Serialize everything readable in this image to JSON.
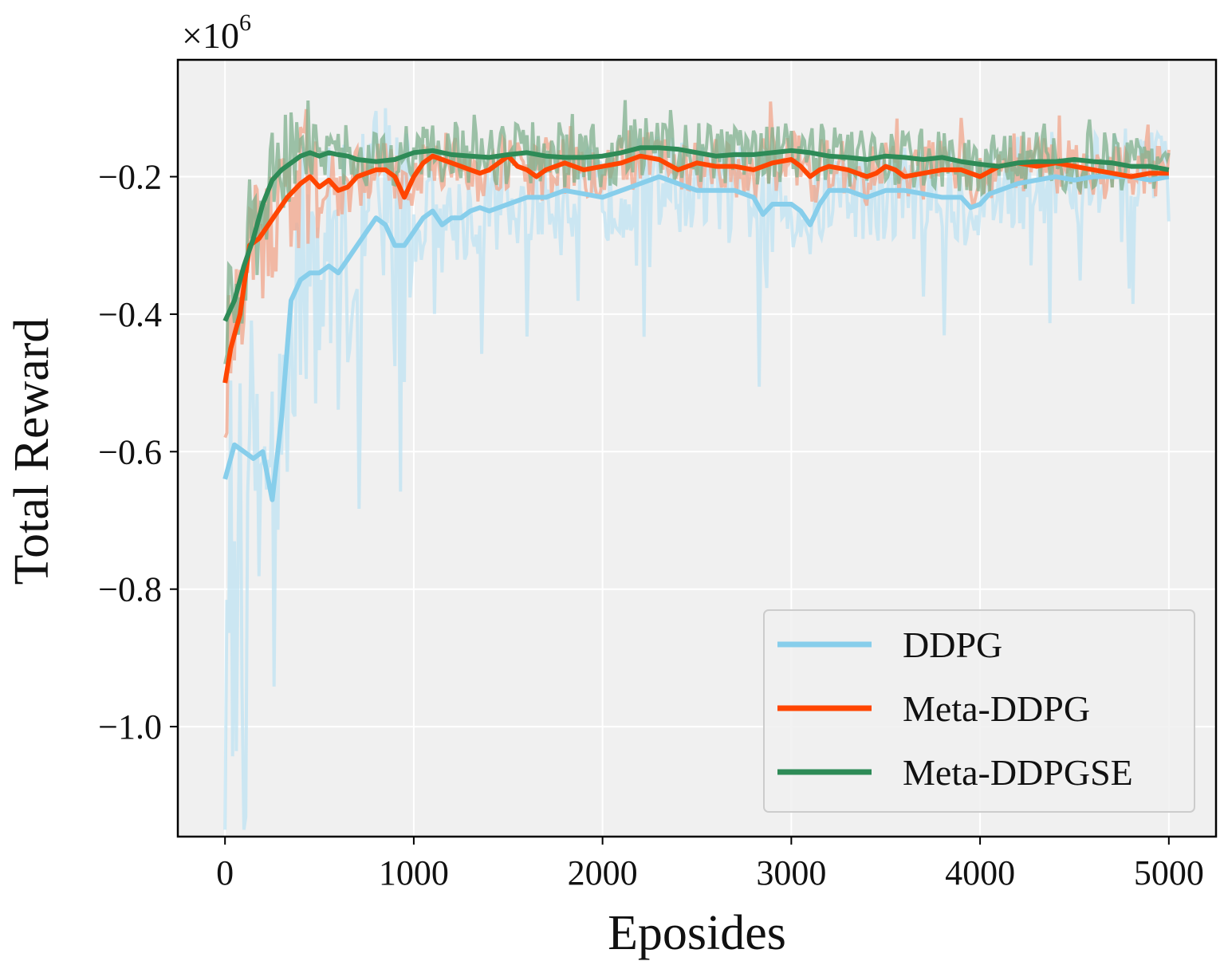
{
  "chart_data": {
    "type": "line",
    "title": "",
    "xlabel": "Eposides",
    "ylabel": "Total Reward",
    "y_offset_label": "×10",
    "y_offset_exponent": "6",
    "xlim": [
      -250,
      5250
    ],
    "ylim": [
      -1.16,
      -0.03
    ],
    "x_ticks": [
      0,
      1000,
      2000,
      3000,
      4000,
      5000
    ],
    "x_tick_labels": [
      "0",
      "1000",
      "2000",
      "3000",
      "4000",
      "5000"
    ],
    "y_ticks": [
      -1.0,
      -0.8,
      -0.6,
      -0.4,
      -0.2
    ],
    "y_tick_labels": [
      "−1.0",
      "−0.8",
      "−0.6",
      "−0.4",
      "−0.2"
    ],
    "grid": true,
    "legend_position": "bottom-right",
    "series": [
      {
        "name": "DDPG",
        "color": "#87ceeb",
        "raw_color": "#bfe3f3",
        "smoothed": [
          [
            0,
            -0.64
          ],
          [
            50,
            -0.59
          ],
          [
            100,
            -0.6
          ],
          [
            150,
            -0.61
          ],
          [
            200,
            -0.6
          ],
          [
            250,
            -0.67
          ],
          [
            300,
            -0.55
          ],
          [
            350,
            -0.38
          ],
          [
            400,
            -0.35
          ],
          [
            450,
            -0.34
          ],
          [
            500,
            -0.34
          ],
          [
            550,
            -0.33
          ],
          [
            600,
            -0.34
          ],
          [
            650,
            -0.32
          ],
          [
            700,
            -0.3
          ],
          [
            750,
            -0.28
          ],
          [
            800,
            -0.26
          ],
          [
            850,
            -0.27
          ],
          [
            900,
            -0.3
          ],
          [
            950,
            -0.3
          ],
          [
            1000,
            -0.28
          ],
          [
            1050,
            -0.26
          ],
          [
            1100,
            -0.25
          ],
          [
            1150,
            -0.27
          ],
          [
            1200,
            -0.26
          ],
          [
            1250,
            -0.26
          ],
          [
            1300,
            -0.25
          ],
          [
            1350,
            -0.245
          ],
          [
            1400,
            -0.25
          ],
          [
            1450,
            -0.245
          ],
          [
            1500,
            -0.24
          ],
          [
            1600,
            -0.23
          ],
          [
            1700,
            -0.23
          ],
          [
            1800,
            -0.22
          ],
          [
            1900,
            -0.225
          ],
          [
            2000,
            -0.23
          ],
          [
            2100,
            -0.22
          ],
          [
            2200,
            -0.21
          ],
          [
            2300,
            -0.2
          ],
          [
            2400,
            -0.21
          ],
          [
            2500,
            -0.22
          ],
          [
            2600,
            -0.22
          ],
          [
            2700,
            -0.22
          ],
          [
            2800,
            -0.23
          ],
          [
            2850,
            -0.255
          ],
          [
            2900,
            -0.24
          ],
          [
            3000,
            -0.24
          ],
          [
            3050,
            -0.25
          ],
          [
            3100,
            -0.27
          ],
          [
            3150,
            -0.24
          ],
          [
            3200,
            -0.22
          ],
          [
            3300,
            -0.22
          ],
          [
            3400,
            -0.23
          ],
          [
            3500,
            -0.22
          ],
          [
            3600,
            -0.22
          ],
          [
            3700,
            -0.225
          ],
          [
            3800,
            -0.23
          ],
          [
            3900,
            -0.23
          ],
          [
            3950,
            -0.245
          ],
          [
            4000,
            -0.24
          ],
          [
            4050,
            -0.225
          ],
          [
            4100,
            -0.22
          ],
          [
            4200,
            -0.21
          ],
          [
            4300,
            -0.205
          ],
          [
            4400,
            -0.2
          ],
          [
            4500,
            -0.205
          ],
          [
            4600,
            -0.2
          ],
          [
            4700,
            -0.2
          ],
          [
            4800,
            -0.2
          ],
          [
            4900,
            -0.205
          ],
          [
            5000,
            -0.2
          ]
        ]
      },
      {
        "name": "Meta-DDPG",
        "color": "#ff4500",
        "raw_color": "#f2a58b",
        "smoothed": [
          [
            0,
            -0.5
          ],
          [
            30,
            -0.45
          ],
          [
            80,
            -0.4
          ],
          [
            130,
            -0.3
          ],
          [
            180,
            -0.29
          ],
          [
            230,
            -0.27
          ],
          [
            280,
            -0.25
          ],
          [
            330,
            -0.23
          ],
          [
            400,
            -0.21
          ],
          [
            450,
            -0.2
          ],
          [
            500,
            -0.215
          ],
          [
            550,
            -0.205
          ],
          [
            600,
            -0.22
          ],
          [
            650,
            -0.215
          ],
          [
            700,
            -0.2
          ],
          [
            750,
            -0.195
          ],
          [
            800,
            -0.19
          ],
          [
            850,
            -0.19
          ],
          [
            900,
            -0.2
          ],
          [
            950,
            -0.23
          ],
          [
            1000,
            -0.2
          ],
          [
            1050,
            -0.18
          ],
          [
            1100,
            -0.17
          ],
          [
            1150,
            -0.175
          ],
          [
            1200,
            -0.18
          ],
          [
            1250,
            -0.185
          ],
          [
            1300,
            -0.19
          ],
          [
            1350,
            -0.195
          ],
          [
            1400,
            -0.19
          ],
          [
            1450,
            -0.18
          ],
          [
            1500,
            -0.17
          ],
          [
            1550,
            -0.185
          ],
          [
            1600,
            -0.19
          ],
          [
            1650,
            -0.2
          ],
          [
            1700,
            -0.19
          ],
          [
            1800,
            -0.18
          ],
          [
            1900,
            -0.19
          ],
          [
            2000,
            -0.185
          ],
          [
            2100,
            -0.18
          ],
          [
            2200,
            -0.17
          ],
          [
            2300,
            -0.175
          ],
          [
            2400,
            -0.19
          ],
          [
            2500,
            -0.18
          ],
          [
            2600,
            -0.185
          ],
          [
            2700,
            -0.185
          ],
          [
            2800,
            -0.19
          ],
          [
            2900,
            -0.18
          ],
          [
            3000,
            -0.175
          ],
          [
            3050,
            -0.185
          ],
          [
            3100,
            -0.2
          ],
          [
            3150,
            -0.19
          ],
          [
            3200,
            -0.185
          ],
          [
            3300,
            -0.19
          ],
          [
            3400,
            -0.2
          ],
          [
            3450,
            -0.195
          ],
          [
            3500,
            -0.185
          ],
          [
            3550,
            -0.19
          ],
          [
            3600,
            -0.2
          ],
          [
            3700,
            -0.195
          ],
          [
            3800,
            -0.19
          ],
          [
            3900,
            -0.19
          ],
          [
            4000,
            -0.2
          ],
          [
            4100,
            -0.185
          ],
          [
            4200,
            -0.18
          ],
          [
            4300,
            -0.185
          ],
          [
            4400,
            -0.18
          ],
          [
            4500,
            -0.185
          ],
          [
            4600,
            -0.19
          ],
          [
            4700,
            -0.195
          ],
          [
            4800,
            -0.2
          ],
          [
            4900,
            -0.195
          ],
          [
            5000,
            -0.195
          ]
        ]
      },
      {
        "name": "Meta-DDPGSE",
        "color": "#2e8b57",
        "raw_color": "#7fb08e",
        "smoothed": [
          [
            0,
            -0.41
          ],
          [
            50,
            -0.38
          ],
          [
            100,
            -0.33
          ],
          [
            150,
            -0.29
          ],
          [
            200,
            -0.24
          ],
          [
            250,
            -0.205
          ],
          [
            300,
            -0.19
          ],
          [
            350,
            -0.18
          ],
          [
            400,
            -0.17
          ],
          [
            450,
            -0.165
          ],
          [
            500,
            -0.17
          ],
          [
            550,
            -0.165
          ],
          [
            600,
            -0.168
          ],
          [
            650,
            -0.17
          ],
          [
            700,
            -0.175
          ],
          [
            800,
            -0.178
          ],
          [
            900,
            -0.175
          ],
          [
            1000,
            -0.165
          ],
          [
            1100,
            -0.162
          ],
          [
            1200,
            -0.168
          ],
          [
            1300,
            -0.17
          ],
          [
            1400,
            -0.172
          ],
          [
            1500,
            -0.168
          ],
          [
            1600,
            -0.165
          ],
          [
            1700,
            -0.17
          ],
          [
            1800,
            -0.172
          ],
          [
            1900,
            -0.172
          ],
          [
            2000,
            -0.17
          ],
          [
            2100,
            -0.165
          ],
          [
            2200,
            -0.158
          ],
          [
            2300,
            -0.158
          ],
          [
            2400,
            -0.16
          ],
          [
            2500,
            -0.165
          ],
          [
            2600,
            -0.17
          ],
          [
            2700,
            -0.168
          ],
          [
            2800,
            -0.168
          ],
          [
            2900,
            -0.165
          ],
          [
            3000,
            -0.162
          ],
          [
            3100,
            -0.165
          ],
          [
            3200,
            -0.17
          ],
          [
            3300,
            -0.172
          ],
          [
            3400,
            -0.175
          ],
          [
            3500,
            -0.17
          ],
          [
            3600,
            -0.172
          ],
          [
            3700,
            -0.175
          ],
          [
            3800,
            -0.172
          ],
          [
            3900,
            -0.178
          ],
          [
            4000,
            -0.182
          ],
          [
            4100,
            -0.185
          ],
          [
            4200,
            -0.18
          ],
          [
            4300,
            -0.178
          ],
          [
            4400,
            -0.178
          ],
          [
            4500,
            -0.175
          ],
          [
            4600,
            -0.178
          ],
          [
            4700,
            -0.18
          ],
          [
            4800,
            -0.185
          ],
          [
            4900,
            -0.185
          ],
          [
            5000,
            -0.19
          ]
        ]
      }
    ],
    "raw_noise_note_amplitude": [
      0.12,
      0.06,
      0.05
    ]
  }
}
